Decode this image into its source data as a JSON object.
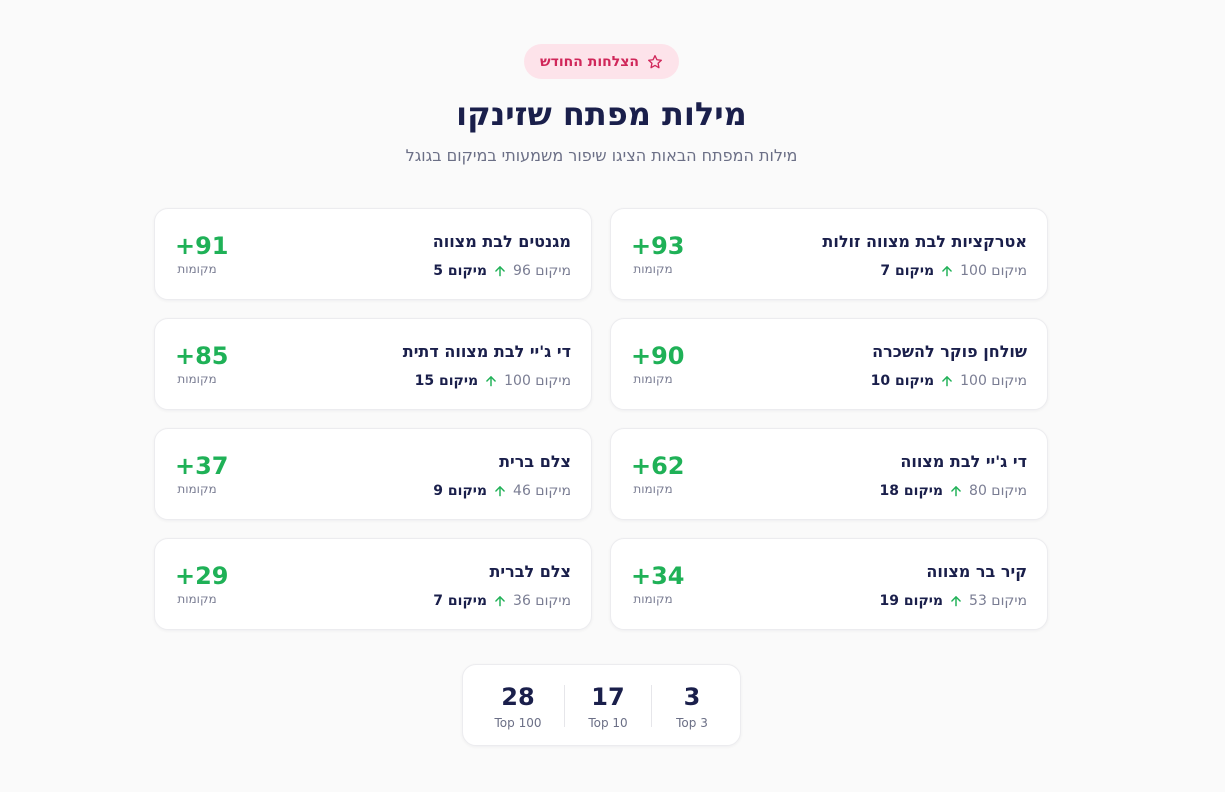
{
  "header": {
    "badge_label": "הצלחות החודש",
    "badge_icon": "star-icon",
    "title": "מילות מפתח שזינקו",
    "subtitle": "מילות המפתח הבאות הציגו שיפור משמעותי במיקום בגוגל"
  },
  "colors": {
    "accent_green": "#1fb157",
    "badge_bg": "#fde3ea",
    "badge_text": "#d0275a",
    "heading": "#1a1f4b"
  },
  "keywords": [
    {
      "keyword": "אטרקציות לבת מצווה זולות",
      "from_label": "מיקום 100",
      "to_label": "מיקום 7",
      "delta": "+93",
      "delta_label": "מקומות"
    },
    {
      "keyword": "מגנטים לבת מצווה",
      "from_label": "מיקום 96",
      "to_label": "מיקום 5",
      "delta": "+91",
      "delta_label": "מקומות"
    },
    {
      "keyword": "שולחן פוקר להשכרה",
      "from_label": "מיקום 100",
      "to_label": "מיקום 10",
      "delta": "+90",
      "delta_label": "מקומות"
    },
    {
      "keyword": "די ג'יי לבת מצווה דתית",
      "from_label": "מיקום 100",
      "to_label": "מיקום 15",
      "delta": "+85",
      "delta_label": "מקומות"
    },
    {
      "keyword": "די ג'יי לבת מצווה",
      "from_label": "מיקום 80",
      "to_label": "מיקום 18",
      "delta": "+62",
      "delta_label": "מקומות"
    },
    {
      "keyword": "צלם ברית",
      "from_label": "מיקום 46",
      "to_label": "מיקום 9",
      "delta": "+37",
      "delta_label": "מקומות"
    },
    {
      "keyword": "קיר בר מצווה",
      "from_label": "מיקום 53",
      "to_label": "מיקום 19",
      "delta": "+34",
      "delta_label": "מקומות"
    },
    {
      "keyword": "צלם לברית",
      "from_label": "מיקום 36",
      "to_label": "מיקום 7",
      "delta": "+29",
      "delta_label": "מקומות"
    }
  ],
  "stats": [
    {
      "value": "3",
      "label": "Top 3"
    },
    {
      "value": "17",
      "label": "Top 10"
    },
    {
      "value": "28",
      "label": "Top 100"
    }
  ]
}
